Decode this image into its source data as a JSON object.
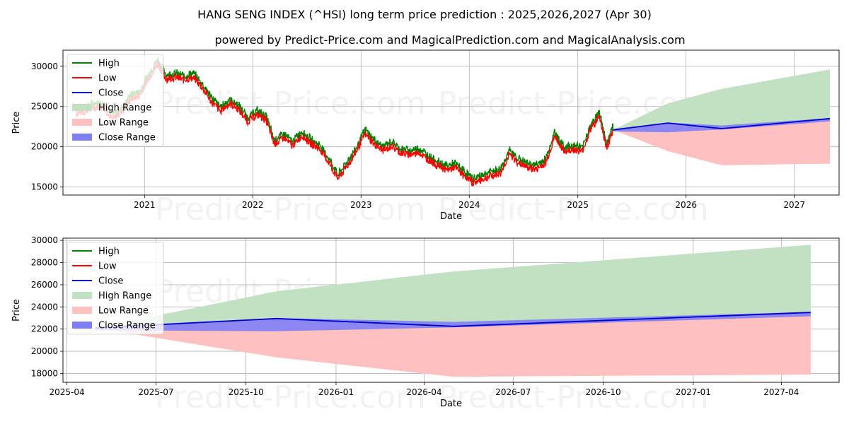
{
  "title": "HANG SENG INDEX (^HSI) long term price prediction : 2025,2026,2027 (Apr 30)",
  "subtitle": "powered by Predict-Price.com and MagicalPrediction.com and MagicalAnalysis.com",
  "watermark": "Predict-Price.com",
  "colors": {
    "high": "#008000",
    "low": "#ff0000",
    "close": "#0000cc",
    "high_range": "#c2e0c2",
    "low_range": "#ffc0c0",
    "close_range": "#7f7ff5"
  },
  "legend": [
    "High",
    "Low",
    "Close",
    "High Range",
    "Low Range",
    "Close Range"
  ],
  "chart_data": [
    {
      "type": "line",
      "xlabel": "Date",
      "ylabel": "Price",
      "xlim": [
        "2020-04-01",
        "2027-06-01"
      ],
      "ylim": [
        14000,
        32000
      ],
      "x_ticks": [
        "2021",
        "2022",
        "2023",
        "2024",
        "2025",
        "2026",
        "2027"
      ],
      "y_ticks": [
        15000,
        20000,
        25000,
        30000
      ],
      "grid": true,
      "legend_position": "top-left",
      "history": [
        [
          "2020-05-15",
          24300
        ],
        [
          "2020-06-15",
          24600
        ],
        [
          "2020-07-15",
          25100
        ],
        [
          "2020-08-15",
          25200
        ],
        [
          "2020-09-15",
          23600
        ],
        [
          "2020-10-15",
          24500
        ],
        [
          "2020-11-15",
          26100
        ],
        [
          "2020-12-15",
          26500
        ],
        [
          "2021-01-15",
          28700
        ],
        [
          "2021-02-15",
          30500
        ],
        [
          "2021-03-15",
          28600
        ],
        [
          "2021-04-15",
          28800
        ],
        [
          "2021-05-15",
          28500
        ],
        [
          "2021-06-15",
          28800
        ],
        [
          "2021-07-15",
          27500
        ],
        [
          "2021-08-15",
          25800
        ],
        [
          "2021-09-15",
          24600
        ],
        [
          "2021-10-15",
          25600
        ],
        [
          "2021-11-15",
          24800
        ],
        [
          "2021-12-15",
          23300
        ],
        [
          "2022-01-15",
          24200
        ],
        [
          "2022-02-15",
          23500
        ],
        [
          "2022-03-15",
          20500
        ],
        [
          "2022-04-15",
          21300
        ],
        [
          "2022-05-15",
          20300
        ],
        [
          "2022-06-15",
          21600
        ],
        [
          "2022-07-15",
          20600
        ],
        [
          "2022-08-15",
          19900
        ],
        [
          "2022-09-15",
          18200
        ],
        [
          "2022-10-15",
          16200
        ],
        [
          "2022-11-15",
          17800
        ],
        [
          "2022-12-15",
          19500
        ],
        [
          "2023-01-15",
          21800
        ],
        [
          "2023-02-15",
          20500
        ],
        [
          "2023-03-15",
          19700
        ],
        [
          "2023-04-15",
          20300
        ],
        [
          "2023-05-15",
          19400
        ],
        [
          "2023-06-15",
          19200
        ],
        [
          "2023-07-15",
          19500
        ],
        [
          "2023-08-15",
          18600
        ],
        [
          "2023-09-15",
          17900
        ],
        [
          "2023-10-15",
          17300
        ],
        [
          "2023-11-15",
          17600
        ],
        [
          "2023-12-15",
          16600
        ],
        [
          "2024-01-15",
          15700
        ],
        [
          "2024-02-15",
          16200
        ],
        [
          "2024-03-15",
          16600
        ],
        [
          "2024-04-15",
          16900
        ],
        [
          "2024-05-15",
          19200
        ],
        [
          "2024-06-15",
          18200
        ],
        [
          "2024-07-15",
          17600
        ],
        [
          "2024-08-15",
          17400
        ],
        [
          "2024-09-15",
          18200
        ],
        [
          "2024-10-15",
          21500
        ],
        [
          "2024-11-15",
          19600
        ],
        [
          "2024-12-15",
          19900
        ],
        [
          "2025-01-15",
          19600
        ],
        [
          "2025-02-15",
          22500
        ],
        [
          "2025-03-15",
          24000
        ],
        [
          "2025-04-08",
          20000
        ],
        [
          "2025-04-30",
          22100
        ]
      ],
      "series": [
        {
          "name": "Close",
          "x": [
            "2025-04-30",
            "2025-11-01",
            "2026-05-01",
            "2027-05-01"
          ],
          "values": [
            22100,
            22950,
            22250,
            23500
          ]
        }
      ],
      "ranges": [
        {
          "name": "High Range",
          "x": [
            "2025-04-30",
            "2025-11-01",
            "2026-05-01",
            "2027-05-01"
          ],
          "lower": [
            22100,
            22950,
            22250,
            23500
          ],
          "upper": [
            22100,
            25400,
            27200,
            29600
          ]
        },
        {
          "name": "Low Range",
          "x": [
            "2025-04-30",
            "2025-11-01",
            "2026-05-01",
            "2027-05-01"
          ],
          "lower": [
            22100,
            19450,
            17700,
            17900
          ],
          "upper": [
            22100,
            22950,
            22250,
            23500
          ]
        },
        {
          "name": "Close Range",
          "x": [
            "2025-04-30",
            "2025-11-01",
            "2026-05-01",
            "2027-05-01"
          ],
          "lower": [
            21900,
            21800,
            22150,
            23150
          ],
          "upper": [
            22200,
            23000,
            22650,
            23550
          ]
        }
      ]
    },
    {
      "type": "line",
      "xlabel": "Date",
      "ylabel": "Price",
      "xlim": [
        "2025-03-28",
        "2027-05-30"
      ],
      "ylim": [
        17200,
        30200
      ],
      "x_ticks": [
        "2025-04",
        "2025-07",
        "2025-10",
        "2026-01",
        "2026-04",
        "2026-07",
        "2026-10",
        "2027-01",
        "2027-04"
      ],
      "y_ticks": [
        18000,
        20000,
        22000,
        24000,
        26000,
        28000,
        30000
      ],
      "grid": true,
      "legend_position": "top-left",
      "series": [
        {
          "name": "Close",
          "x": [
            "2025-04-30",
            "2025-11-01",
            "2026-05-01",
            "2027-05-01"
          ],
          "values": [
            22100,
            22950,
            22250,
            23500
          ]
        }
      ],
      "ranges": [
        {
          "name": "High Range",
          "x": [
            "2025-04-30",
            "2025-11-01",
            "2026-05-01",
            "2027-05-01"
          ],
          "lower": [
            22100,
            22950,
            22250,
            23500
          ],
          "upper": [
            22100,
            25400,
            27200,
            29600
          ]
        },
        {
          "name": "Low Range",
          "x": [
            "2025-04-30",
            "2025-11-01",
            "2026-05-01",
            "2027-05-01"
          ],
          "lower": [
            22100,
            19450,
            17700,
            17900
          ],
          "upper": [
            22100,
            22950,
            22250,
            23500
          ]
        },
        {
          "name": "Close Range",
          "x": [
            "2025-04-30",
            "2025-11-01",
            "2026-05-01",
            "2027-05-01"
          ],
          "lower": [
            21900,
            21800,
            22150,
            23150
          ],
          "upper": [
            22200,
            23000,
            22650,
            23550
          ]
        }
      ]
    }
  ]
}
